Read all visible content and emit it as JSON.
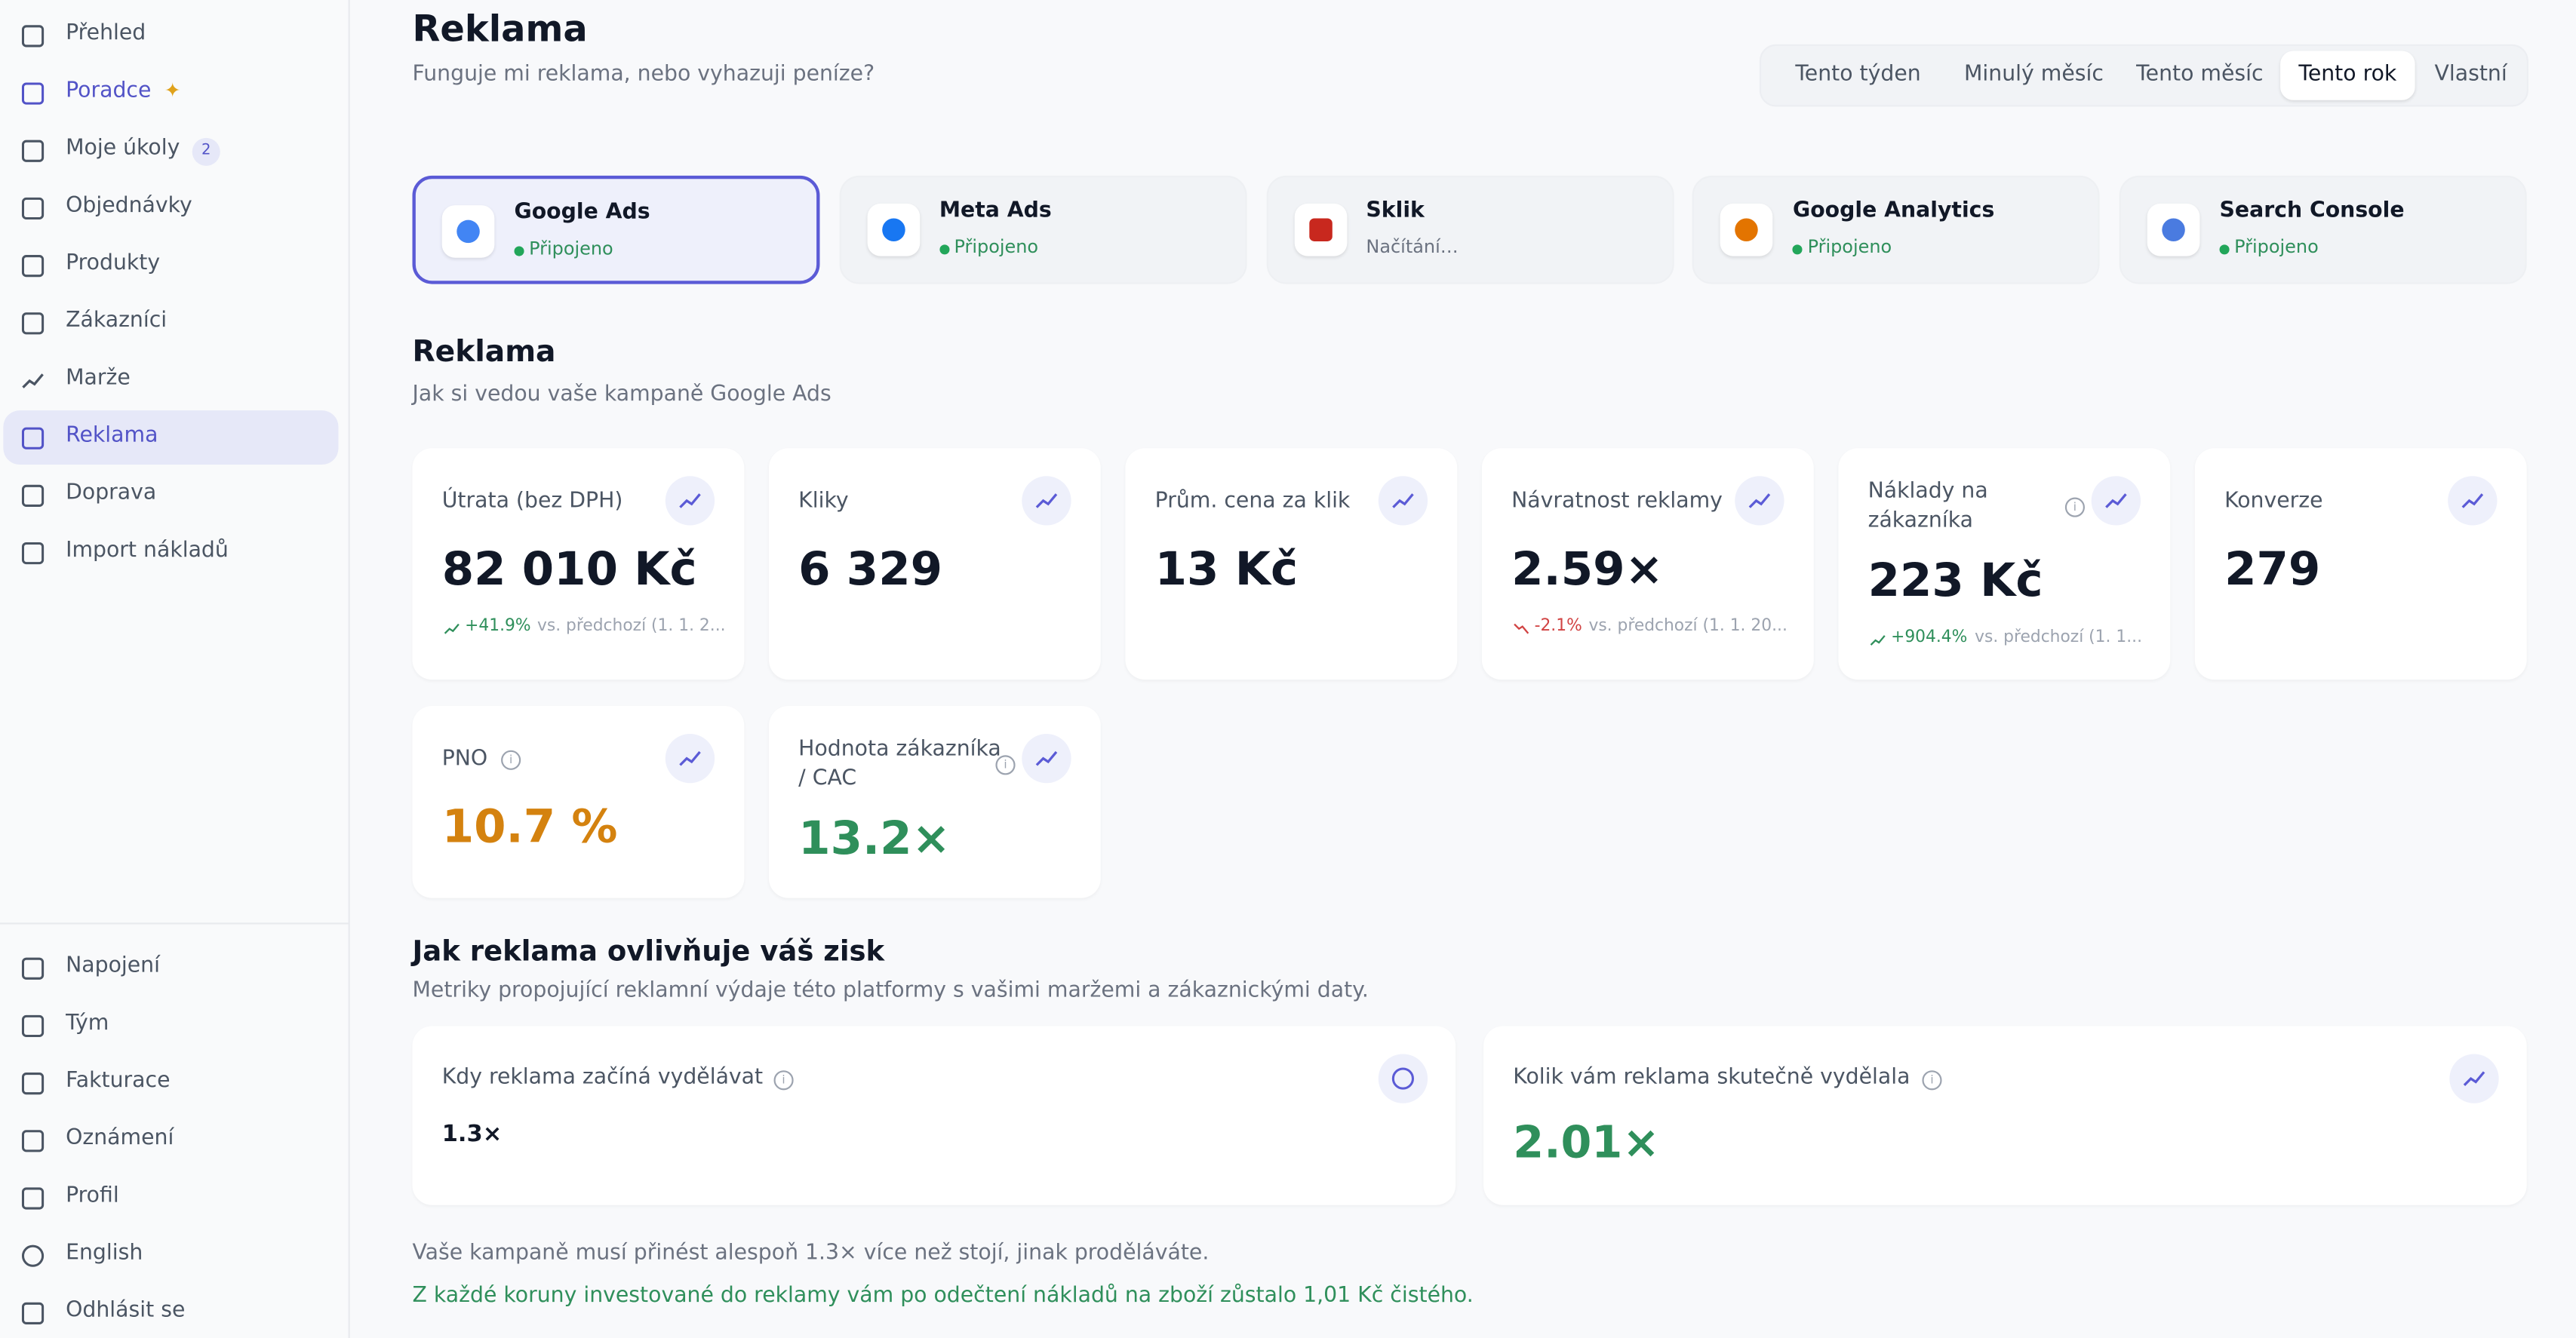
{
  "sidebar": {
    "nav": [
      {
        "label": "Přehled"
      },
      {
        "label": "Poradce"
      },
      {
        "label": "Moje úkoly",
        "badge": "2"
      },
      {
        "label": "Objednávky"
      },
      {
        "label": "Produkty"
      },
      {
        "label": "Zákazníci"
      },
      {
        "label": "Marže"
      },
      {
        "label": "Reklama"
      },
      {
        "label": "Doprava"
      },
      {
        "label": "Import nákladů"
      }
    ],
    "active_index": 7,
    "bottom": [
      {
        "label": "Napojení"
      },
      {
        "label": "Tým"
      },
      {
        "label": "Fakturace"
      },
      {
        "label": "Oznámení"
      },
      {
        "label": "Profil"
      },
      {
        "label": "English"
      },
      {
        "label": "Odhlásit se"
      }
    ]
  },
  "header": {
    "title": "Reklama",
    "subtitle": "Funguje mi reklama, nebo vyhazuji peníze?"
  },
  "periods": {
    "options": [
      "Tento týden",
      "Minulý měsíc",
      "Tento měsíc",
      "Tento rok",
      "Vlastní"
    ],
    "active_index": 3
  },
  "sources": {
    "selected_index": 0,
    "items": [
      {
        "name": "Google Ads",
        "status": "Připojeno",
        "connected": true,
        "color": "#4285f4"
      },
      {
        "name": "Meta Ads",
        "status": "Připojeno",
        "connected": true,
        "color": "#1877f2"
      },
      {
        "name": "Sklik",
        "status": "Načítání…",
        "connected": false,
        "color": "#c8281e"
      },
      {
        "name": "Google Analytics",
        "status": "Připojeno",
        "connected": true,
        "color": "#e37400"
      },
      {
        "name": "Search Console",
        "status": "Připojeno",
        "connected": true,
        "color": "#4a7be0"
      }
    ]
  },
  "metrics": {
    "title": "Reklama",
    "subtitle": "Jak si vedou vaše kampaně Google Ads",
    "cards": [
      {
        "label": "Útrata (bez DPH)",
        "value": "82 010 Kč",
        "change": "+41.9%",
        "trend": "up",
        "compare": "vs. předchozí (1. 1. 2...",
        "color": "#111827"
      },
      {
        "label": "Kliky",
        "value": "6 329",
        "color": "#111827"
      },
      {
        "label": "Prům. cena za klik",
        "value": "13 Kč",
        "color": "#111827"
      },
      {
        "label": "Návratnost reklamy",
        "value": "2.59×",
        "change": "-2.1%",
        "trend": "down",
        "compare": "vs. předchozí (1. 1. 20...",
        "color": "#111827"
      },
      {
        "label": "Náklady na zákazníka",
        "value": "223 Kč",
        "change": "+904.4%",
        "trend": "up",
        "compare": "vs. předchozí (1. 1...",
        "info": true,
        "color": "#111827"
      },
      {
        "label": "Konverze",
        "value": "279",
        "color": "#111827"
      },
      {
        "label": "PNO",
        "value": "10.7 %",
        "info": true,
        "color": "#d4820f"
      },
      {
        "label": "Hodnota zákazníka / CAC",
        "value": "13.2×",
        "info": true,
        "color": "#2f8f5b"
      }
    ]
  },
  "profit": {
    "title": "Jak reklama ovlivňuje váš zisk",
    "subtitle": "Metriky propojující reklamní výdaje této platformy s vašimi maržemi a zákaznickými daty.",
    "cards": [
      {
        "label": "Kdy reklama začíná vydělávat",
        "value": "1.3×",
        "color": "#111827",
        "size": "small"
      },
      {
        "label": "Kolik vám reklama skutečně vydělala",
        "value": "2.01×",
        "color": "#2f8f5b",
        "size": "large"
      }
    ],
    "notes": [
      {
        "text": "Vaše kampaně musí přinést alespoň 1.3× více než stojí, jinak proděláváte.",
        "color": "#6b7280"
      },
      {
        "text": "Z každé koruny investované do reklamy vám po odečtení nákladů na zboží zůstalo 1,01 Kč čistého.",
        "color": "#2f8f5b"
      }
    ]
  }
}
